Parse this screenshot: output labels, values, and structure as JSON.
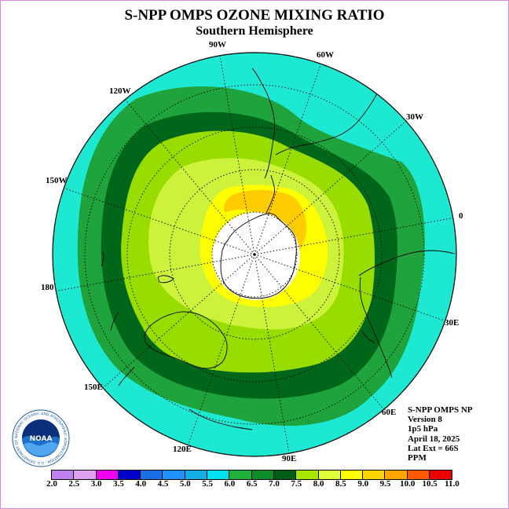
{
  "title": "S-NPP OMPS OZONE MIXING RATIO",
  "subtitle": "Southern Hemisphere",
  "longitude_labels": [
    "90W",
    "60W",
    "30W",
    "0",
    "30E",
    "60E",
    "90E",
    "120E",
    "150E",
    "180",
    "150W",
    "120W"
  ],
  "info": {
    "line1": "S-NPP OMPS NP",
    "line2": "Version 8",
    "line3": "1p5 hPa",
    "line4": "April 18, 2025",
    "line5": "Lat Ext = 66S",
    "line6": "PPM"
  },
  "logo_text": "NOAA",
  "logo_ring_text": "NATIONAL OCEANIC AND ATMOSPHERIC ADMINISTRATION · U.S. DEPARTMENT OF COMMERCE",
  "colorbar": {
    "ticks": [
      "2.0",
      "2.5",
      "3.0",
      "3.5",
      "4.0",
      "4.5",
      "5.0",
      "5.5",
      "6.0",
      "6.5",
      "7.0",
      "7.5",
      "8.0",
      "8.5",
      "9.0",
      "9.5",
      "10.0",
      "10.5",
      "11.0"
    ],
    "colors": [
      "#bf80f0",
      "#dda0ee",
      "#ee00ee",
      "#0000cc",
      "#1a6fe6",
      "#1e90ff",
      "#14aee8",
      "#00e0f0",
      "#1faf3a",
      "#0f8c2a",
      "#005e14",
      "#a8e800",
      "#e0ff38",
      "#ffff00",
      "#ffd500",
      "#ffa500",
      "#ff5a00",
      "#ee0000",
      "#8b5a2b"
    ]
  },
  "map_colors": {
    "band_6_0": "#1de8d2",
    "band_6_5": "#1fa33c",
    "band_7_0": "#00661a",
    "band_7_5": "#99dd00",
    "band_8_0": "#ccf23b",
    "band_8_5": "#ffff00",
    "band_9_0": "#ffcc00",
    "polar_cap": "#ffffff"
  },
  "chart_data": {
    "type": "heatmap",
    "projection": "south polar stereographic",
    "units": "PPM",
    "contour_levels_ppm": [
      6.0,
      6.5,
      7.0,
      7.5,
      8.0,
      8.5,
      9.0
    ],
    "colorbar_range": [
      2.0,
      11.0
    ]
  }
}
